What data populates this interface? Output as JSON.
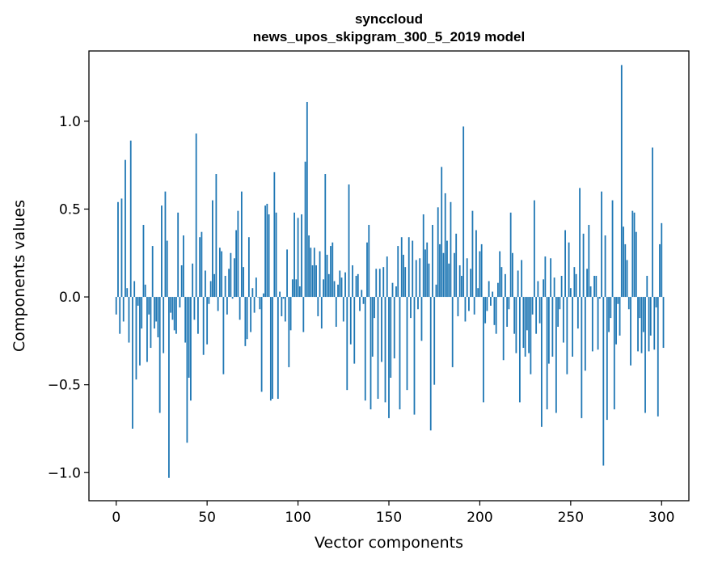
{
  "chart_data": {
    "type": "bar",
    "title": "synccloud",
    "subtitle": "news_upos_skipgram_300_5_2019 model",
    "xlabel": "Vector components",
    "ylabel": "Components values",
    "xlim": [
      -15,
      315
    ],
    "ylim": [
      -1.16,
      1.4
    ],
    "xticks": [
      0,
      50,
      100,
      150,
      200,
      250,
      300
    ],
    "xtick_labels": [
      "0",
      "50",
      "100",
      "150",
      "200",
      "250",
      "300"
    ],
    "yticks": [
      -1.0,
      -0.5,
      0.0,
      0.5,
      1.0
    ],
    "ytick_labels": [
      "−1.0",
      "−0.5",
      "0.0",
      "0.5",
      "1.0"
    ],
    "grid": false,
    "bar_color": "#1f77b4",
    "values": [
      -0.1,
      0.54,
      -0.21,
      0.56,
      -0.14,
      0.78,
      0.05,
      -0.26,
      0.89,
      -0.75,
      0.09,
      -0.47,
      -0.05,
      -0.39,
      -0.18,
      0.41,
      0.07,
      -0.37,
      -0.1,
      -0.29,
      0.29,
      -0.18,
      -0.14,
      -0.23,
      -0.66,
      0.52,
      -0.32,
      0.6,
      0.32,
      -1.03,
      -0.09,
      -0.13,
      -0.19,
      -0.21,
      0.48,
      -0.06,
      0.18,
      0.35,
      -0.26,
      -0.83,
      -0.46,
      -0.59,
      0.19,
      -0.13,
      0.93,
      -0.21,
      0.34,
      0.37,
      -0.33,
      0.15,
      -0.27,
      -0.04,
      0.09,
      0.55,
      0.13,
      0.7,
      -0.08,
      0.28,
      0.26,
      -0.44,
      0.12,
      -0.1,
      0.16,
      0.25,
      -0.01,
      0.22,
      0.38,
      0.49,
      -0.13,
      0.6,
      0.17,
      -0.28,
      -0.24,
      0.34,
      -0.2,
      0.05,
      -0.09,
      0.11,
      0.0,
      -0.07,
      -0.54,
      0.02,
      0.52,
      0.53,
      0.47,
      -0.59,
      -0.58,
      0.71,
      0.48,
      -0.58,
      0.03,
      -0.11,
      -0.01,
      -0.14,
      0.27,
      -0.4,
      -0.19,
      0.1,
      0.48,
      0.1,
      0.45,
      0.06,
      0.47,
      -0.2,
      0.77,
      1.11,
      0.35,
      0.28,
      0.18,
      0.28,
      0.18,
      -0.11,
      0.26,
      -0.18,
      0.1,
      0.7,
      0.24,
      0.13,
      0.29,
      0.31,
      0.09,
      -0.17,
      0.07,
      0.15,
      0.11,
      -0.14,
      0.14,
      -0.53,
      0.64,
      -0.27,
      0.18,
      -0.38,
      0.12,
      0.13,
      -0.08,
      0.04,
      -0.04,
      -0.59,
      0.31,
      0.41,
      -0.64,
      -0.34,
      -0.12,
      0.16,
      -0.58,
      0.16,
      -0.37,
      0.17,
      -0.6,
      0.23,
      -0.69,
      -0.46,
      0.08,
      -0.35,
      0.06,
      0.29,
      -0.64,
      0.34,
      0.24,
      0.17,
      -0.53,
      0.34,
      -0.12,
      0.32,
      -0.67,
      0.21,
      -0.07,
      0.22,
      -0.25,
      0.47,
      0.27,
      0.31,
      0.19,
      -0.76,
      0.41,
      -0.5,
      0.07,
      0.51,
      0.3,
      0.74,
      0.25,
      0.59,
      0.32,
      0.19,
      0.54,
      -0.4,
      0.25,
      0.36,
      -0.11,
      0.18,
      0.12,
      0.97,
      -0.14,
      0.22,
      -0.08,
      0.16,
      0.49,
      -0.1,
      0.38,
      0.05,
      0.26,
      0.3,
      -0.6,
      -0.15,
      -0.08,
      0.09,
      -0.05,
      0.03,
      -0.16,
      -0.21,
      0.08,
      0.26,
      0.17,
      -0.36,
      0.13,
      -0.17,
      -0.07,
      0.48,
      0.25,
      -0.21,
      -0.32,
      0.15,
      -0.6,
      0.21,
      -0.29,
      -0.34,
      -0.19,
      -0.32,
      -0.44,
      -0.1,
      0.55,
      -0.21,
      0.09,
      -0.15,
      -0.74,
      0.1,
      0.23,
      -0.64,
      -0.38,
      0.22,
      -0.34,
      0.11,
      -0.66,
      -0.17,
      -0.07,
      0.12,
      -0.26,
      0.38,
      -0.44,
      0.31,
      0.05,
      -0.34,
      0.17,
      0.13,
      -0.18,
      0.62,
      -0.69,
      0.36,
      -0.42,
      0.16,
      0.41,
      0.06,
      -0.31,
      0.12,
      0.12,
      -0.3,
      -0.01,
      0.6,
      -0.96,
      0.35,
      -0.7,
      -0.2,
      -0.12,
      0.55,
      -0.64,
      -0.27,
      -0.04,
      -0.22,
      1.32,
      0.4,
      0.3,
      0.21,
      -0.07,
      -0.39,
      0.49,
      0.48,
      0.37,
      -0.31,
      -0.12,
      -0.32,
      -0.2,
      -0.66,
      0.12,
      -0.31,
      -0.22,
      0.85,
      -0.3,
      -0.06,
      -0.68,
      0.3,
      0.42,
      -0.29
    ]
  }
}
